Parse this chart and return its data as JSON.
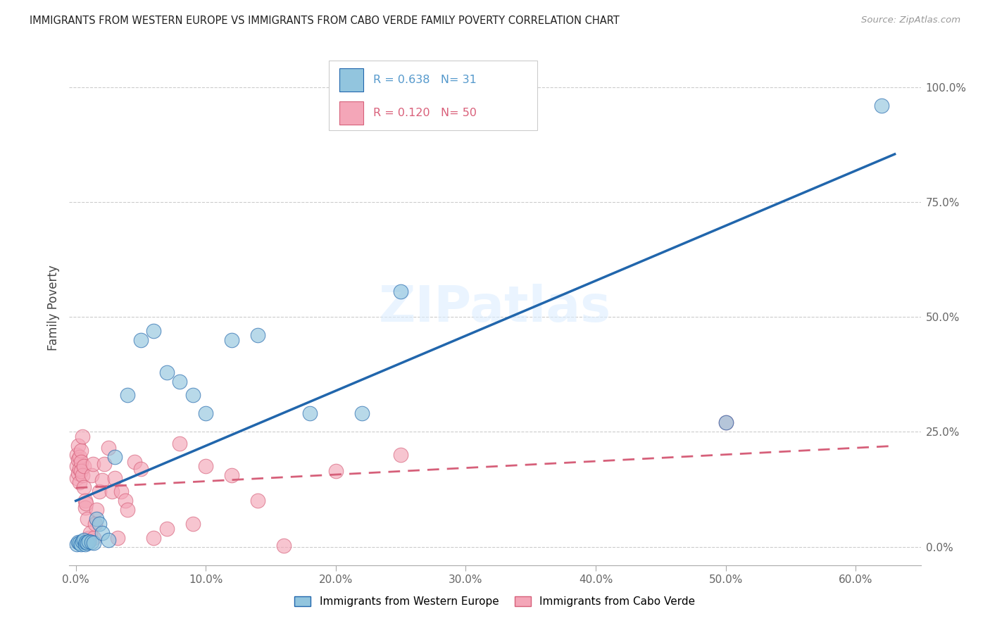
{
  "title": "IMMIGRANTS FROM WESTERN EUROPE VS IMMIGRANTS FROM CABO VERDE FAMILY POVERTY CORRELATION CHART",
  "source": "Source: ZipAtlas.com",
  "xlabel_ticks": [
    "0.0%",
    "10.0%",
    "20.0%",
    "30.0%",
    "40.0%",
    "50.0%",
    "60.0%"
  ],
  "xlabel_vals": [
    0.0,
    0.1,
    0.2,
    0.3,
    0.4,
    0.5,
    0.6
  ],
  "ylabel_ticks": [
    "0.0%",
    "25.0%",
    "50.0%",
    "75.0%",
    "100.0%"
  ],
  "ylabel_vals": [
    0.0,
    0.25,
    0.5,
    0.75,
    1.0
  ],
  "ylabel_label": "Family Poverty",
  "legend_label1": "Immigrants from Western Europe",
  "legend_label2": "Immigrants from Cabo Verde",
  "R1": 0.638,
  "N1": 31,
  "R2": 0.12,
  "N2": 50,
  "color_blue": "#92c5de",
  "color_pink": "#f4a6b8",
  "color_blue_line": "#2166ac",
  "color_pink_line": "#d6607a",
  "background": "#ffffff",
  "xlim": [
    -0.005,
    0.65
  ],
  "ylim": [
    -0.04,
    1.08
  ],
  "blue_x": [
    0.001,
    0.002,
    0.003,
    0.004,
    0.005,
    0.006,
    0.007,
    0.008,
    0.009,
    0.01,
    0.012,
    0.014,
    0.016,
    0.018,
    0.02,
    0.025,
    0.03,
    0.04,
    0.05,
    0.06,
    0.07,
    0.08,
    0.09,
    0.1,
    0.12,
    0.14,
    0.18,
    0.22,
    0.25,
    0.5,
    0.62
  ],
  "blue_y": [
    0.005,
    0.01,
    0.008,
    0.006,
    0.012,
    0.015,
    0.005,
    0.01,
    0.008,
    0.012,
    0.01,
    0.008,
    0.06,
    0.05,
    0.03,
    0.015,
    0.195,
    0.33,
    0.45,
    0.47,
    0.38,
    0.36,
    0.33,
    0.29,
    0.45,
    0.46,
    0.29,
    0.29,
    0.555,
    0.27,
    0.96
  ],
  "pink_x": [
    0.001,
    0.001,
    0.001,
    0.002,
    0.002,
    0.002,
    0.003,
    0.003,
    0.003,
    0.004,
    0.004,
    0.004,
    0.005,
    0.005,
    0.006,
    0.006,
    0.007,
    0.007,
    0.008,
    0.009,
    0.01,
    0.011,
    0.012,
    0.013,
    0.014,
    0.015,
    0.016,
    0.018,
    0.02,
    0.022,
    0.025,
    0.028,
    0.03,
    0.032,
    0.035,
    0.038,
    0.04,
    0.045,
    0.05,
    0.06,
    0.07,
    0.08,
    0.09,
    0.1,
    0.12,
    0.14,
    0.16,
    0.2,
    0.25,
    0.5
  ],
  "pink_y": [
    0.15,
    0.175,
    0.2,
    0.22,
    0.19,
    0.16,
    0.14,
    0.17,
    0.195,
    0.21,
    0.185,
    0.165,
    0.24,
    0.155,
    0.13,
    0.175,
    0.1,
    0.085,
    0.095,
    0.06,
    0.02,
    0.03,
    0.155,
    0.18,
    0.02,
    0.05,
    0.08,
    0.12,
    0.145,
    0.18,
    0.215,
    0.12,
    0.15,
    0.02,
    0.12,
    0.1,
    0.08,
    0.185,
    0.17,
    0.02,
    0.04,
    0.225,
    0.05,
    0.175,
    0.155,
    0.1,
    0.003,
    0.165,
    0.2,
    0.27
  ]
}
